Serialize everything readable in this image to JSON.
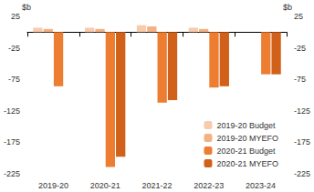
{
  "chart_data": {
    "type": "bar",
    "y_label": "$b",
    "categories": [
      "2019-20",
      "2020-21",
      "2021-22",
      "2022-23",
      "2023-24"
    ],
    "series": [
      {
        "name": "2019-20 Budget",
        "color": "#f8cbad",
        "values": [
          7,
          7,
          11,
          7,
          null
        ]
      },
      {
        "name": "2019-20 MYEFO",
        "color": "#f4b183",
        "values": [
          5,
          5,
          9,
          5,
          null
        ]
      },
      {
        "name": "2020-21 Budget",
        "color": "#ed7d31",
        "values": [
          -86,
          -214,
          -112,
          -88,
          -67
        ]
      },
      {
        "name": "2020-21 MYEFO",
        "color": "#d0601a",
        "values": [
          null,
          -198,
          -108,
          -86,
          -67
        ]
      }
    ],
    "ylim": [
      -225,
      25
    ],
    "yticks": [
      -225,
      -175,
      -125,
      -75,
      -25,
      25
    ],
    "grid": false,
    "legend": "lower right"
  }
}
